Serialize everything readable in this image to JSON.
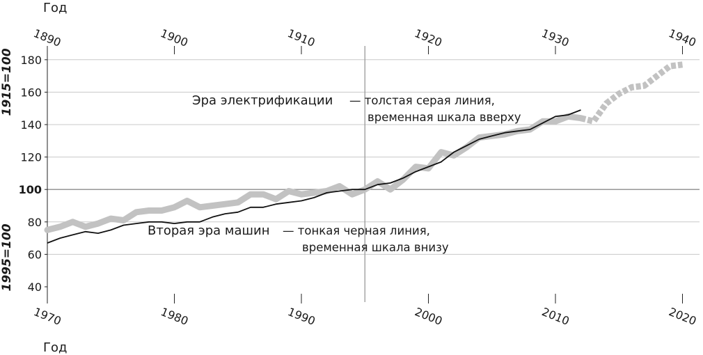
{
  "chart_data": {
    "type": "line",
    "top_axis": {
      "title": "Год",
      "ticks": [
        "1890",
        "1900",
        "1910",
        "1920",
        "1930",
        "1940"
      ]
    },
    "bottom_axis": {
      "title": "Год",
      "ticks": [
        "1970",
        "1980",
        "1990",
        "2000",
        "2010",
        "2020"
      ]
    },
    "y_axis": {
      "ticks": [
        "40",
        "60",
        "80",
        "100",
        "120",
        "140",
        "160",
        "180"
      ],
      "upper_label": "1915=100",
      "lower_label": "1995=100",
      "ylim": [
        35,
        190
      ],
      "grid": true
    },
    "annotations": [
      {
        "head": "Эра электрификации",
        "body_line1": "— толстая серая линия,",
        "body_line2": "временная шкала вверху"
      },
      {
        "head": "Вторая эра машин",
        "body_line1": "— тонкая черная линия,",
        "body_line2": "временная шкала внизу"
      }
    ],
    "series": [
      {
        "name": "Эра электрификации",
        "axis": "top",
        "color": "#c2c2c2",
        "x": [
          1890,
          1891,
          1892,
          1893,
          1894,
          1895,
          1896,
          1897,
          1898,
          1899,
          1900,
          1901,
          1902,
          1903,
          1904,
          1905,
          1906,
          1907,
          1908,
          1909,
          1910,
          1911,
          1912,
          1913,
          1914,
          1915,
          1916,
          1917,
          1918,
          1919,
          1920,
          1921,
          1922,
          1923,
          1924,
          1925,
          1926,
          1927,
          1928,
          1929,
          1930,
          1931,
          1932,
          1933,
          1934,
          1935,
          1936,
          1937,
          1938,
          1939,
          1940
        ],
        "y": [
          75,
          77,
          80,
          77,
          79,
          82,
          81,
          86,
          87,
          87,
          89,
          93,
          89,
          90,
          91,
          92,
          97,
          97,
          94,
          99,
          97,
          98,
          99,
          102,
          97,
          100,
          105,
          100,
          106,
          114,
          113,
          123,
          121,
          126,
          132,
          133,
          134,
          136,
          137,
          142,
          142,
          145,
          144,
          142,
          153,
          159,
          163,
          164,
          170,
          176,
          177
        ],
        "dashed_from_x": 1932
      },
      {
        "name": "Вторая эра машин",
        "axis": "bottom",
        "color": "#111111",
        "x": [
          1970,
          1971,
          1972,
          1973,
          1974,
          1975,
          1976,
          1977,
          1978,
          1979,
          1980,
          1981,
          1982,
          1983,
          1984,
          1985,
          1986,
          1987,
          1988,
          1989,
          1990,
          1991,
          1992,
          1993,
          1994,
          1995,
          1996,
          1997,
          1998,
          1999,
          2000,
          2001,
          2002,
          2003,
          2004,
          2005,
          2006,
          2007,
          2008,
          2009,
          2010,
          2011,
          2012
        ],
        "y": [
          67,
          70,
          72,
          74,
          73,
          75,
          78,
          79,
          80,
          80,
          79,
          80,
          80,
          83,
          85,
          86,
          89,
          89,
          91,
          92,
          93,
          95,
          98,
          99,
          100,
          100,
          103,
          104,
          107,
          111,
          114,
          117,
          123,
          127,
          131,
          133,
          135,
          136,
          137,
          141,
          145,
          146,
          149
        ]
      }
    ],
    "reference_line_x": 1995
  }
}
